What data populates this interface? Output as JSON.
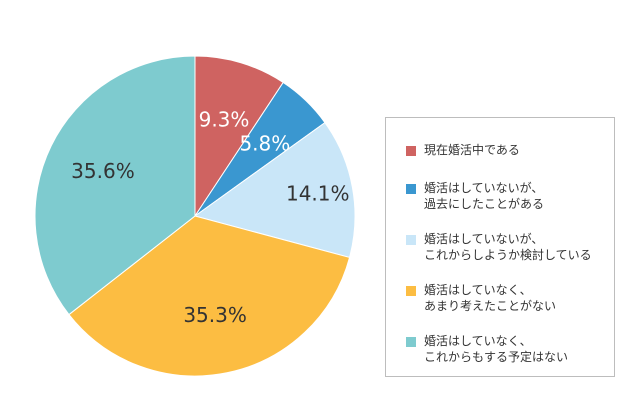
{
  "chart_data": {
    "type": "pie",
    "legend_position": "right",
    "slices": [
      {
        "label": [
          "現在婚活中である"
        ],
        "value": 9.3,
        "value_label": "9.3%",
        "color": "#cf6361",
        "text_color": "#ffffff"
      },
      {
        "label": [
          "婚活はしていないが、",
          "過去にしたことがある"
        ],
        "value": 5.8,
        "value_label": "5.8%",
        "color": "#3a97d0",
        "text_color": "#ffffff"
      },
      {
        "label": [
          "婚活はしていないが、",
          "これからしようか検討している"
        ],
        "value": 14.1,
        "value_label": "14.1%",
        "color": "#c9e6f8",
        "text_color": "#333333"
      },
      {
        "label": [
          "婚活はしていなく、",
          "あまり考えたことがない"
        ],
        "value": 35.3,
        "value_label": "35.3%",
        "color": "#fcbd42",
        "text_color": "#333333"
      },
      {
        "label": [
          "婚活はしていなく、",
          "これからもする予定はない"
        ],
        "value": 35.6,
        "value_label": "35.6%",
        "color": "#7ecbcf",
        "text_color": "#333333"
      }
    ]
  }
}
